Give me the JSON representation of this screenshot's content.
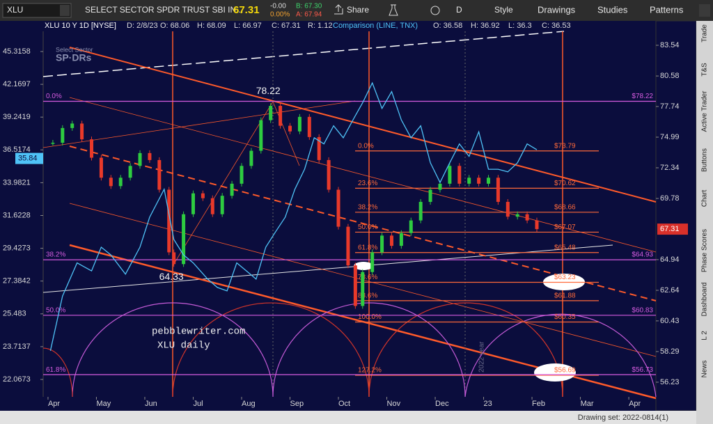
{
  "toolbar": {
    "symbol": "XLU",
    "description": "SELECT SECTOR SPDR TRUST SBI IN...",
    "last": "67.31",
    "change": "-0.00",
    "change_pct": "0.00%",
    "bid": "B: 67.30",
    "ask": "A: 67.94",
    "share": "Share",
    "period": "D",
    "style": "Style",
    "drawings": "Drawings",
    "studies": "Studies",
    "patterns": "Patterns"
  },
  "legend": {
    "date": "D: 2/8/23",
    "open": "O: 68.06",
    "high": "H: 68.09",
    "low": "L: 66.97",
    "close": "C: 67.31",
    "range": "R: 1.12",
    "cmp_open": "O: 36.58",
    "cmp_high": "H: 36.92",
    "cmp_low": "L: 36.3",
    "cmp_close": "C: 36.53"
  },
  "side_tabs": [
    "Trade",
    "T&S",
    "Active Trader",
    "Buttons",
    "Chart",
    "Phase Scores",
    "Dashboard",
    "L 2",
    "News"
  ],
  "status_bar": {
    "drawing_set": "Drawing set: 2022-0814(1)"
  },
  "overlay_text": {
    "watermark_top": "Select Sector",
    "watermark_bottom": "SP·DRs",
    "site": "pebblewriter.com",
    "caption": "XLU daily",
    "year": "2022 year"
  },
  "chart_data": {
    "type": "candlestick",
    "log_scale": true,
    "xlim": [
      -0.1,
      12.56
    ],
    "xticks": [
      {
        "value": 0,
        "label": "Apr"
      },
      {
        "value": 1,
        "label": "May"
      },
      {
        "value": 2,
        "label": "Jun"
      },
      {
        "value": 3,
        "label": "Jul"
      },
      {
        "value": 4,
        "label": "Aug"
      },
      {
        "value": 5,
        "label": "Sep"
      },
      {
        "value": 6,
        "label": "Oct"
      },
      {
        "value": 7,
        "label": "Nov"
      },
      {
        "value": 8,
        "label": "Dec"
      },
      {
        "value": 9,
        "label": "23"
      },
      {
        "value": 10,
        "label": "Feb"
      },
      {
        "value": 11,
        "label": "Mar"
      },
      {
        "value": 12,
        "label": "Apr"
      }
    ],
    "ylim": [
      55.27,
      84.92
    ],
    "yticks": [
      83.54,
      80.58,
      77.74,
      74.99,
      72.34,
      69.78,
      64.94,
      62.64,
      60.43,
      58.29,
      56.23
    ],
    "y2lim": [
      21.24,
      47.37
    ],
    "y2ticks": [
      45.3158,
      42.1697,
      39.2419,
      36.5174,
      33.9821,
      31.6228,
      29.4273,
      27.3842,
      25.483,
      23.7137,
      22.0673
    ],
    "series": [
      {
        "name": "XLU 10 Y 1D [NYSE]",
        "color": "#2ecc40",
        "down_color": "#e8392a",
        "x": [
          0.1,
          0.3,
          0.5,
          0.7,
          0.9,
          1.1,
          1.3,
          1.5,
          1.7,
          1.9,
          2.1,
          2.3,
          2.5,
          2.6,
          2.8,
          3.0,
          3.2,
          3.4,
          3.6,
          3.8,
          4.0,
          4.2,
          4.4,
          4.6,
          4.8,
          5.0,
          5.2,
          5.4,
          5.6,
          5.8,
          6.0,
          6.2,
          6.35,
          6.5,
          6.7,
          6.9,
          7.1,
          7.3,
          7.5,
          7.7,
          7.9,
          8.1,
          8.3,
          8.5,
          8.7,
          8.9,
          9.1,
          9.3,
          9.5,
          9.7,
          9.9,
          10.1
        ],
        "values": [
          74.5,
          75.8,
          76.2,
          74.8,
          73.2,
          71.5,
          70.8,
          71.5,
          72.5,
          73.6,
          73.0,
          70.5,
          65.5,
          64.6,
          68.5,
          70.2,
          69.8,
          68.5,
          70.0,
          71.0,
          72.5,
          73.8,
          76.5,
          77.8,
          76.0,
          75.5,
          76.8,
          75.0,
          73.0,
          70.5,
          67.5,
          64.5,
          61.5,
          64.0,
          65.5,
          66.8,
          66.0,
          67.0,
          68.0,
          69.5,
          70.5,
          71.0,
          72.5,
          71.0,
          71.5,
          71.0,
          71.5,
          69.5,
          68.3,
          68.5,
          68.0,
          67.31
        ]
      },
      {
        "name": "Comparison (LINE, TNX)",
        "color": "#4fc3f7",
        "axis": "y2",
        "x": [
          0.05,
          0.3,
          0.6,
          0.9,
          1.1,
          1.3,
          1.6,
          1.9,
          2.1,
          2.4,
          2.6,
          2.8,
          3.0,
          3.3,
          3.5,
          3.7,
          3.9,
          4.1,
          4.3,
          4.5,
          4.7,
          4.9,
          5.1,
          5.3,
          5.5,
          5.7,
          5.9,
          6.1,
          6.3,
          6.5,
          6.7,
          6.9,
          7.1,
          7.3,
          7.5,
          7.7,
          7.9,
          8.1,
          8.3,
          8.5,
          8.7,
          8.9,
          9.1,
          9.3,
          9.5,
          9.7,
          9.9,
          10.1
        ],
        "values": [
          23.5,
          26.5,
          28.5,
          28.0,
          29.5,
          29.0,
          27.8,
          29.5,
          31.5,
          33.5,
          30.0,
          29.0,
          28.5,
          27.5,
          27.0,
          26.8,
          28.5,
          28.0,
          27.5,
          29.5,
          30.5,
          31.5,
          33.5,
          35.0,
          37.5,
          37.0,
          38.5,
          37.5,
          39.0,
          40.5,
          42.3,
          40.0,
          41.5,
          39.0,
          37.5,
          38.5,
          35.5,
          34.0,
          35.5,
          37.0,
          36.0,
          38.0,
          35.0,
          35.0,
          34.8,
          35.5,
          37.0,
          36.53
        ]
      }
    ],
    "fib_retracements": [
      {
        "color": "#ff6a3a",
        "levels": [
          {
            "pct": "0.0%",
            "value": 73.79,
            "label": "$73.79"
          },
          {
            "pct": "23.6%",
            "value": 70.62,
            "label": "$70.62"
          },
          {
            "pct": "38.2%",
            "value": 68.66,
            "label": "$68.66"
          },
          {
            "pct": "50.0%",
            "value": 67.07,
            "label": "$67.07"
          },
          {
            "pct": "61.8%",
            "value": 65.48,
            "label": "$65.48"
          },
          {
            "pct": "78.6%",
            "value": 63.23,
            "label": "$63.23"
          },
          {
            "pct": "88.6%",
            "value": 61.88,
            "label": "$61.88"
          },
          {
            "pct": "100.0%",
            "value": 60.35,
            "label": "$60.35"
          },
          {
            "pct": "127.2%",
            "value": 56.69,
            "label": "$56.69"
          }
        ]
      },
      {
        "color": "#d65ce0",
        "levels": [
          {
            "pct": "0.0%",
            "value": 78.22,
            "label": "$78.22"
          },
          {
            "pct": "38.2%",
            "value": 64.93,
            "label": "$64.93"
          },
          {
            "pct": "50.0%",
            "value": 60.83,
            "label": "$60.83"
          },
          {
            "pct": "61.8%",
            "value": 56.73,
            "label": "$56.73"
          }
        ]
      }
    ],
    "annotations": [
      {
        "x": 4.55,
        "value": 78.22
      },
      {
        "x": 2.55,
        "value": 64.33
      }
    ],
    "price_tag": 67.31,
    "comparison_tag": 35.84
  }
}
